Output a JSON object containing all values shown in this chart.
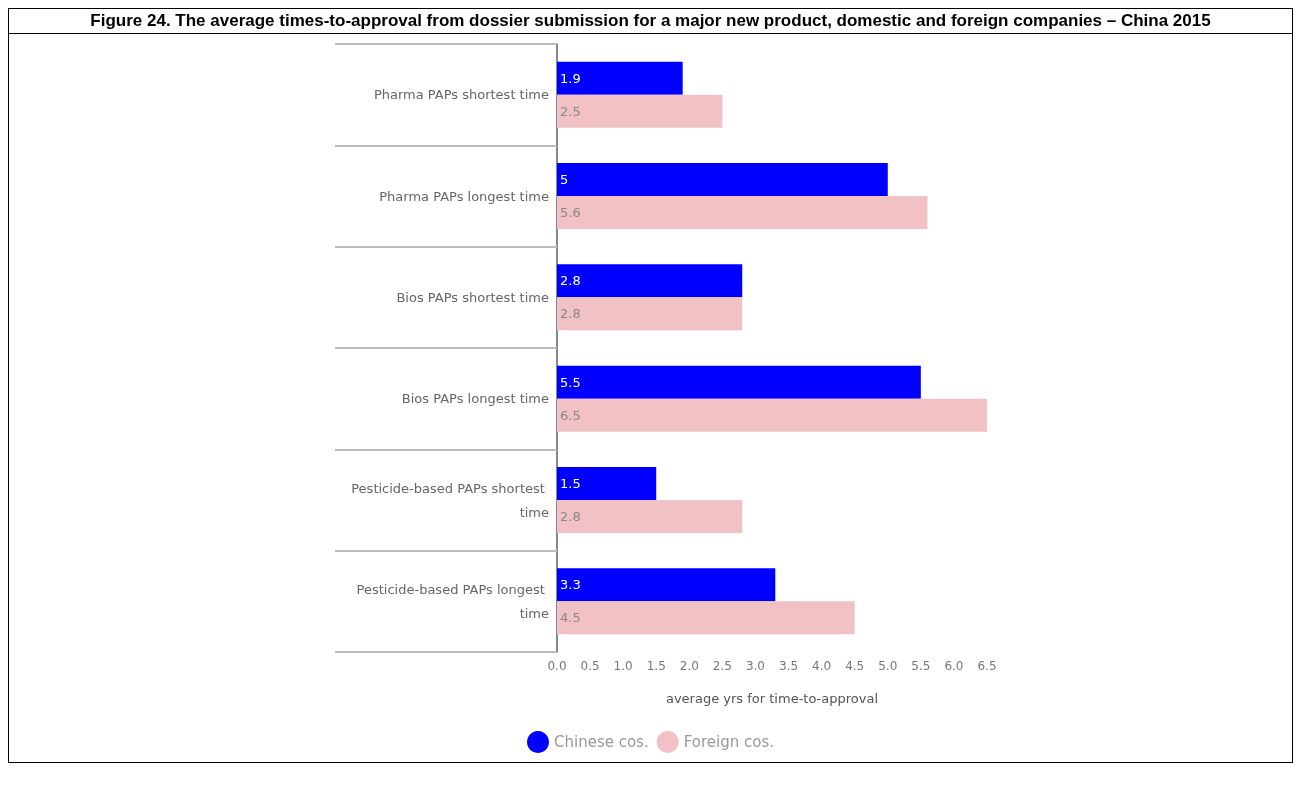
{
  "chart_data": {
    "type": "bar",
    "orientation": "horizontal",
    "title": "Figure 24. The average times-to-approval from dossier submission for a major new product, domestic and foreign companies – China 2015",
    "xlabel": "average yrs for time-to-approval",
    "categories": [
      "Pharma PAPs shortest time",
      "Pharma PAPs longest time",
      "Bios PAPs shortest time",
      "Bios PAPs longest time",
      "Pesticide-based PAPs shortest time",
      "Pesticide-based PAPs longest time"
    ],
    "series": [
      {
        "name": "Chinese cos.",
        "color": "#0000ff",
        "values": [
          1.9,
          5,
          2.8,
          5.5,
          1.5,
          3.3
        ]
      },
      {
        "name": "Foreign cos.",
        "color": "#f2c1c5",
        "values": [
          2.5,
          5.6,
          2.8,
          6.5,
          2.8,
          4.5
        ]
      }
    ],
    "xlim": [
      0,
      6.5
    ],
    "xticks": [
      {
        "value": 0,
        "label": "0.0"
      },
      0.5,
      {
        "value": 1,
        "label": "1.0"
      },
      1.5,
      {
        "value": 2,
        "label": "2.0"
      },
      2.5,
      {
        "value": 3,
        "label": "3.0"
      },
      3.5,
      {
        "value": 4,
        "label": "4.0"
      },
      4.5,
      {
        "value": 5,
        "label": "5.0"
      },
      5.5,
      {
        "value": 6,
        "label": "6.0"
      },
      6.5
    ],
    "data_labels": true,
    "grid": false,
    "legend": "bottom"
  }
}
